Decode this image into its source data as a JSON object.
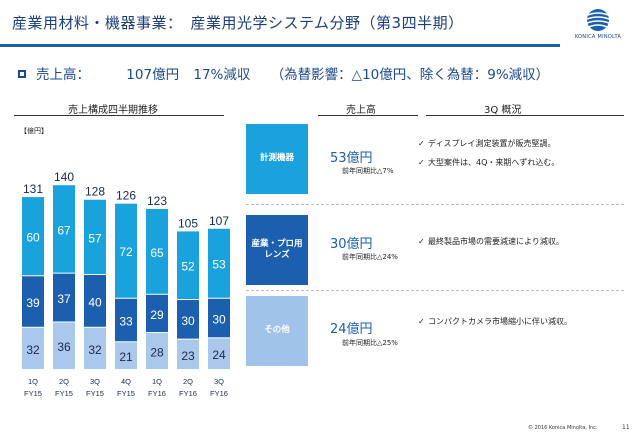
{
  "header": {
    "title": "産業用材料・機器事業：　産業用光学システム分野（第3四半期）",
    "logo_text": "KONICA MINOLTA"
  },
  "summary": {
    "label": "売上高：",
    "value": "107億円",
    "change": "17%減収",
    "fx_note": "（為替影響：△10億円、除く為替：9%減収）"
  },
  "chart_section_title": "売上構成四半期推移",
  "sales_header": "売上高",
  "overview_header": "3Q 概況",
  "chart_unit": "【億円】",
  "chart_data": {
    "type": "bar",
    "stacked": true,
    "categories": [
      "1Q\nFY15",
      "2Q\nFY15",
      "3Q\nFY15",
      "4Q\nFY15",
      "1Q\nFY16",
      "2Q\nFY16",
      "3Q\nFY16"
    ],
    "category_lines": [
      [
        "1Q",
        "FY15"
      ],
      [
        "2Q",
        "FY15"
      ],
      [
        "3Q",
        "FY15"
      ],
      [
        "4Q",
        "FY15"
      ],
      [
        "1Q",
        "FY16"
      ],
      [
        "2Q",
        "FY16"
      ],
      [
        "3Q",
        "FY16"
      ]
    ],
    "totals": [
      131,
      140,
      128,
      126,
      123,
      105,
      107
    ],
    "series": [
      {
        "values": [
          32,
          36,
          32,
          21,
          28,
          23,
          24
        ],
        "color": "#a9c8ec"
      },
      {
        "values": [
          39,
          37,
          40,
          33,
          29,
          30,
          30
        ],
        "color": "#1b5fae"
      },
      {
        "values": [
          60,
          67,
          57,
          72,
          65,
          52,
          53
        ],
        "color": "#1aa2dc"
      }
    ],
    "ylim": [
      0,
      140
    ]
  },
  "categories": [
    {
      "label": "計測機器",
      "sales": "53億円",
      "yoy": "前年同期比△7%",
      "notes": [
        "ディスプレイ測定装置が販売堅調。",
        "大型案件は、4Q・来期へずれ込む。"
      ]
    },
    {
      "label": "産業・プロ用\nレンズ",
      "label_lines": [
        "産業・プロ用",
        "レンズ"
      ],
      "sales": "30億円",
      "yoy": "前年同期比△24%",
      "notes": [
        "最終製品市場の需要減速により減収。"
      ]
    },
    {
      "label": "その他",
      "sales": "24億円",
      "yoy": "前年同期比△25%",
      "notes": [
        "コンパクトカメラ市場縮小に伴い減収。"
      ]
    }
  ],
  "check_glyph": "✓",
  "footer": {
    "copyright": "© 2016 Konica Minolta, Inc.",
    "page": "11"
  }
}
